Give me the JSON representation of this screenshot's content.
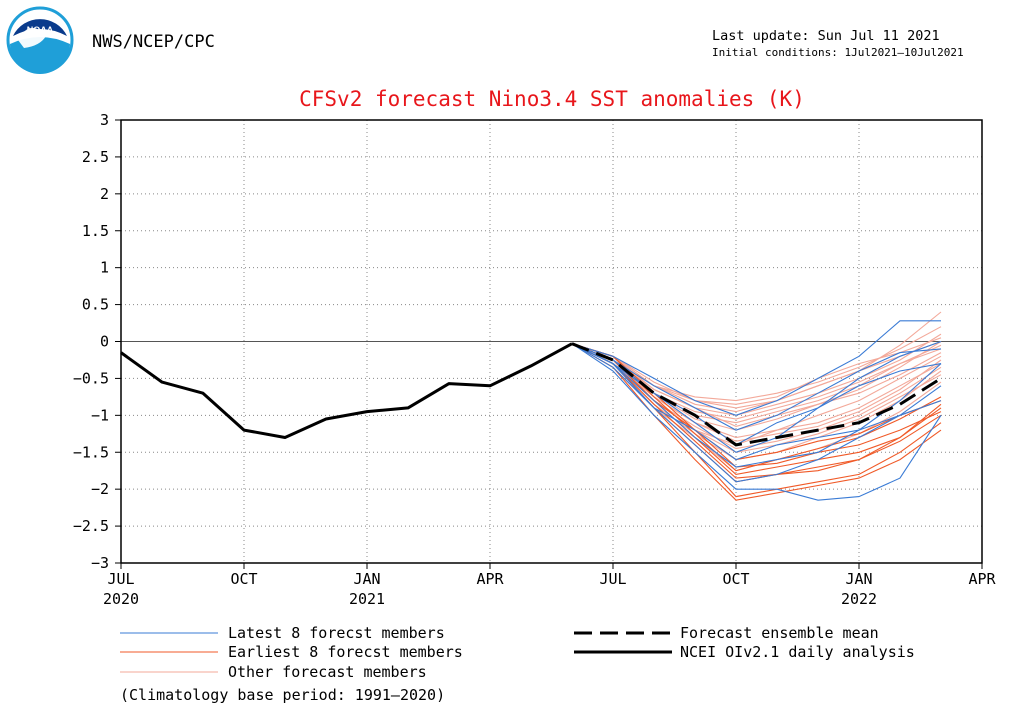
{
  "header": {
    "agency": "NWS/NCEP/CPC",
    "logo_text": "NOAA",
    "last_update": "Last update: Sun Jul 11 2021",
    "initial_conditions": "Initial conditions: 1Jul2021—10Jul2021"
  },
  "footer": {
    "climatology_note": "(Climatology base period: 1991—2020)"
  },
  "colors": {
    "title": "#e8161b",
    "latest": "#3a7bd5",
    "earliest": "#f05a28",
    "other": "#f3a99a",
    "observed": "#000000",
    "grid": "#888888",
    "logo": "#1f9fd8"
  },
  "chart_data": {
    "type": "line",
    "title": "CFSv2 forecast Nino3.4 SST anomalies (K)",
    "xlabel": "",
    "ylabel": "",
    "x_unit": "months since Jul 2020",
    "xlim": [
      0,
      21
    ],
    "ylim": [
      -3,
      3
    ],
    "yticks": [
      3,
      2.5,
      2,
      1.5,
      1,
      0.5,
      0,
      -0.5,
      -1,
      -1.5,
      -2,
      -2.5,
      -3
    ],
    "ytick_labels": [
      "3",
      "2.5",
      "2",
      "1.5",
      "1",
      "0.5",
      "0",
      "−0.5",
      "−1",
      "−1.5",
      "−2",
      "−2.5",
      "−3"
    ],
    "xticks": [
      {
        "x": 0,
        "label": "JUL",
        "year": "2020"
      },
      {
        "x": 3,
        "label": "OCT",
        "year": ""
      },
      {
        "x": 6,
        "label": "JAN",
        "year": "2021"
      },
      {
        "x": 9,
        "label": "APR",
        "year": ""
      },
      {
        "x": 12,
        "label": "JUL",
        "year": ""
      },
      {
        "x": 15,
        "label": "OCT",
        "year": ""
      },
      {
        "x": 18,
        "label": "JAN",
        "year": "2022"
      },
      {
        "x": 21,
        "label": "APR",
        "year": ""
      }
    ],
    "grid": true,
    "legend": [
      {
        "key": "latest",
        "label": "Latest 8 forecst members",
        "style": "thin"
      },
      {
        "key": "earliest",
        "label": "Earliest 8 forecst members",
        "style": "thin"
      },
      {
        "key": "other",
        "label": "Other forecast members",
        "style": "thin"
      },
      {
        "key": "mean",
        "label": "Forecast ensemble mean",
        "style": "dashed"
      },
      {
        "key": "observed",
        "label": "NCEI OIv2.1 daily analysis",
        "style": "solid"
      }
    ],
    "observed": {
      "name": "NCEI OIv2.1 daily analysis",
      "x": [
        0,
        1,
        2,
        3,
        4,
        5,
        6,
        7,
        8,
        9,
        10,
        11
      ],
      "y": [
        -0.15,
        -0.55,
        -0.7,
        -1.2,
        -1.3,
        -1.05,
        -0.95,
        -0.9,
        -0.57,
        -0.6,
        -0.33,
        -0.03
      ]
    },
    "ensemble_mean": {
      "name": "Forecast ensemble mean",
      "x": [
        11,
        12,
        13,
        14,
        15,
        16,
        17,
        18,
        19,
        20
      ],
      "y": [
        -0.03,
        -0.25,
        -0.7,
        -1.0,
        -1.4,
        -1.3,
        -1.2,
        -1.1,
        -0.85,
        -0.5
      ]
    },
    "forecast_x": [
      11,
      12,
      13,
      14,
      15,
      16,
      17,
      18,
      19,
      20
    ],
    "members": {
      "latest": [
        [
          -0.03,
          -0.3,
          -0.7,
          -1.1,
          -1.5,
          -1.3,
          -0.9,
          -0.5,
          -0.2,
          0.0
        ],
        [
          -0.03,
          -0.25,
          -0.6,
          -0.9,
          -1.2,
          -1.0,
          -0.7,
          -0.4,
          -0.15,
          -0.1
        ],
        [
          -0.03,
          -0.35,
          -0.9,
          -1.4,
          -1.9,
          -1.8,
          -1.6,
          -1.3,
          -1.0,
          -0.6
        ],
        [
          -0.03,
          -0.2,
          -0.5,
          -0.8,
          -1.0,
          -0.8,
          -0.5,
          -0.2,
          0.28,
          0.28
        ],
        [
          -0.03,
          -0.3,
          -0.8,
          -1.3,
          -1.7,
          -1.6,
          -1.5,
          -1.2,
          -0.8,
          -0.3
        ],
        [
          -0.03,
          -0.4,
          -1.0,
          -1.5,
          -2.0,
          -2.0,
          -2.15,
          -2.1,
          -1.85,
          -1.0
        ],
        [
          -0.03,
          -0.25,
          -0.7,
          -1.0,
          -1.4,
          -1.1,
          -0.9,
          -0.6,
          -0.4,
          -0.3
        ],
        [
          -0.03,
          -0.3,
          -0.9,
          -1.2,
          -1.6,
          -1.4,
          -1.3,
          -1.2,
          -1.0,
          -0.8
        ]
      ],
      "earliest": [
        [
          -0.03,
          -0.3,
          -0.9,
          -1.5,
          -2.1,
          -2.0,
          -1.9,
          -1.8,
          -1.5,
          -1.1
        ],
        [
          -0.03,
          -0.25,
          -0.8,
          -1.3,
          -1.8,
          -1.7,
          -1.6,
          -1.5,
          -1.3,
          -0.9
        ],
        [
          -0.03,
          -0.35,
          -1.0,
          -1.6,
          -2.15,
          -2.05,
          -1.95,
          -1.85,
          -1.6,
          -1.2
        ],
        [
          -0.03,
          -0.2,
          -0.7,
          -1.2,
          -1.6,
          -1.5,
          -1.35,
          -1.25,
          -1.0,
          -0.8
        ],
        [
          -0.03,
          -0.3,
          -0.9,
          -1.4,
          -1.9,
          -1.8,
          -1.7,
          -1.6,
          -1.35,
          -1.0
        ],
        [
          -0.03,
          -0.25,
          -0.8,
          -1.2,
          -1.7,
          -1.65,
          -1.5,
          -1.4,
          -1.2,
          -0.95
        ],
        [
          -0.03,
          -0.3,
          -0.85,
          -1.35,
          -1.85,
          -1.8,
          -1.75,
          -1.6,
          -1.3,
          -0.85
        ],
        [
          -0.03,
          -0.2,
          -0.75,
          -1.25,
          -1.75,
          -1.6,
          -1.45,
          -1.3,
          -1.05,
          -0.75
        ]
      ],
      "other": [
        [
          -0.03,
          -0.2,
          -0.6,
          -0.8,
          -0.9,
          -0.8,
          -0.6,
          -0.4,
          -0.2,
          0.0
        ],
        [
          -0.03,
          -0.25,
          -0.7,
          -1.0,
          -1.1,
          -0.95,
          -0.8,
          -0.6,
          -0.3,
          -0.1
        ],
        [
          -0.03,
          -0.3,
          -0.8,
          -1.2,
          -1.4,
          -1.2,
          -1.0,
          -0.8,
          -0.5,
          -0.2
        ],
        [
          -0.03,
          -0.2,
          -0.65,
          -0.9,
          -1.0,
          -0.85,
          -0.7,
          -0.5,
          -0.25,
          0.1
        ],
        [
          -0.03,
          -0.25,
          -0.75,
          -1.1,
          -1.3,
          -1.2,
          -1.1,
          -0.9,
          -0.6,
          -0.3
        ],
        [
          -0.03,
          -0.3,
          -0.85,
          -1.25,
          -1.6,
          -1.5,
          -1.3,
          -1.1,
          -0.8,
          -0.4
        ],
        [
          -0.03,
          -0.2,
          -0.6,
          -0.75,
          -0.8,
          -0.7,
          -0.55,
          -0.35,
          -0.1,
          0.2
        ],
        [
          -0.03,
          -0.25,
          -0.7,
          -1.05,
          -1.2,
          -1.05,
          -0.85,
          -0.65,
          -0.35,
          0.0
        ],
        [
          -0.03,
          -0.3,
          -0.8,
          -1.15,
          -1.45,
          -1.35,
          -1.2,
          -1.0,
          -0.7,
          -0.35
        ],
        [
          -0.03,
          -0.35,
          -0.9,
          -1.3,
          -1.75,
          -1.6,
          -1.45,
          -1.25,
          -0.95,
          -0.55
        ],
        [
          -0.03,
          -0.2,
          -0.6,
          -0.85,
          -0.95,
          -0.8,
          -0.6,
          -0.4,
          -0.05,
          0.4
        ],
        [
          -0.03,
          -0.25,
          -0.7,
          -0.95,
          -1.05,
          -0.9,
          -0.75,
          -0.55,
          -0.3,
          -0.05
        ],
        [
          -0.03,
          -0.3,
          -0.75,
          -1.1,
          -1.35,
          -1.25,
          -1.15,
          -0.95,
          -0.65,
          -0.25
        ],
        [
          -0.03,
          -0.25,
          -0.65,
          -0.9,
          -1.15,
          -1.0,
          -0.85,
          -0.7,
          -0.45,
          -0.15
        ],
        [
          -0.03,
          -0.3,
          -0.8,
          -1.2,
          -1.5,
          -1.4,
          -1.25,
          -1.05,
          -0.75,
          -0.45
        ],
        [
          -0.03,
          -0.2,
          -0.55,
          -0.8,
          -0.85,
          -0.75,
          -0.5,
          -0.3,
          -0.15,
          0.05
        ]
      ]
    }
  }
}
